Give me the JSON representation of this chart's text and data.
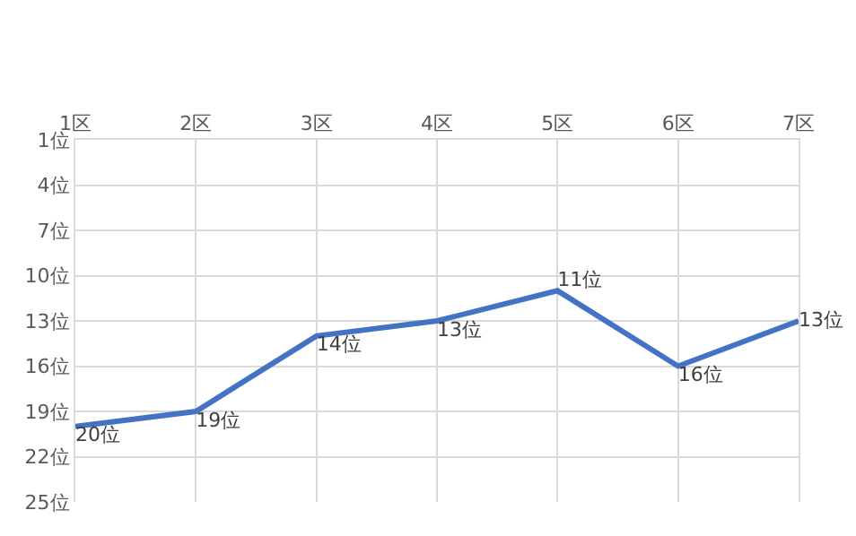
{
  "chart_data": {
    "type": "line",
    "categories": [
      "1区",
      "2区",
      "3区",
      "4区",
      "5区",
      "6区",
      "7区"
    ],
    "series": [
      {
        "color": "#4472c4",
        "values": [
          20,
          19,
          14,
          13,
          11,
          16,
          13
        ],
        "value_labels": [
          "20位",
          "19位",
          "14位",
          "13位",
          "11位",
          "16位",
          "13位"
        ]
      }
    ],
    "ylim": [
      25,
      1
    ],
    "yticks": [
      {
        "value": 1,
        "label": "1位"
      },
      {
        "value": 4,
        "label": "4位"
      },
      {
        "value": 7,
        "label": "7位"
      },
      {
        "value": 10,
        "label": "10位"
      },
      {
        "value": 13,
        "label": "13位"
      },
      {
        "value": 16,
        "label": "16位"
      },
      {
        "value": 19,
        "label": "19位"
      },
      {
        "value": 22,
        "label": "22位"
      },
      {
        "value": 25,
        "label": "25位"
      }
    ],
    "grid": true,
    "marker": "none",
    "line_style": "solid",
    "legend": false
  }
}
